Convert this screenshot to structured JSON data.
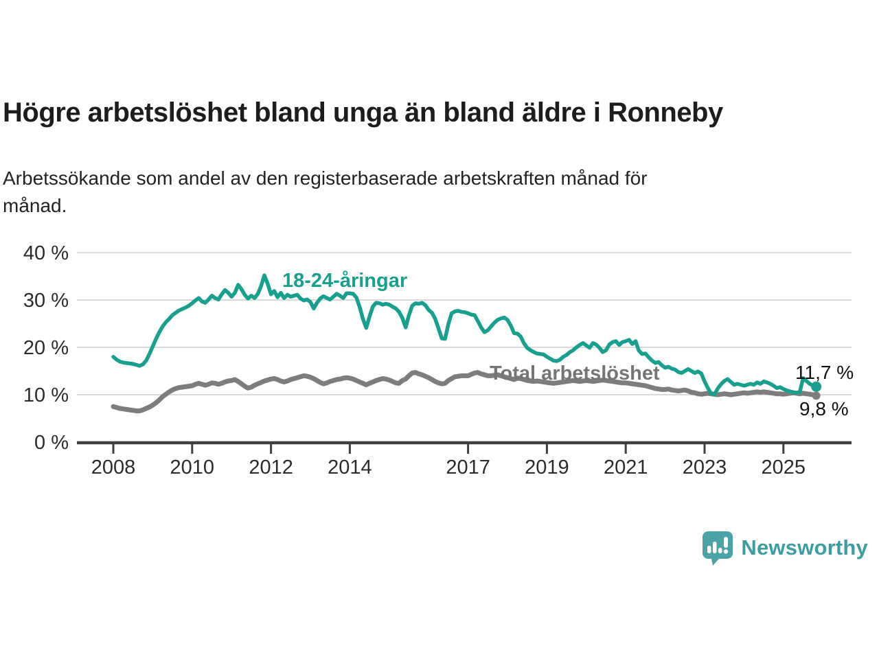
{
  "header": {
    "title": "Högre arbetslöshet bland unga än bland äldre i Ronneby",
    "subtitle_line1": "Arbetssökande som andel av den registerbaserade arbetskraften månad för",
    "subtitle_line2": "månad."
  },
  "chart_data": {
    "type": "line",
    "title": "Högre arbetslöshet bland unga än bland äldre i Ronneby",
    "subtitle": "Arbetssökande som andel av den registerbaserade arbetskraften månad för månad.",
    "x_start": 2008,
    "points_per_year": 12,
    "x_ticks": [
      2008,
      2010,
      2012,
      2014,
      2017,
      2019,
      2021,
      2023,
      2025
    ],
    "y_ticks": [
      0,
      10,
      20,
      30,
      40
    ],
    "y_tick_suffix": " %",
    "ylim": [
      0,
      40
    ],
    "grid": "horizontal",
    "legend_position": "inline-labels",
    "series": [
      {
        "id": "total",
        "label": "Total arbetslöshet",
        "color": "#7d7d7d",
        "width": 7,
        "dot_radius": 6,
        "end_value_label": "9,8 %",
        "end_value": 9.8,
        "values": [
          7.5,
          7.3,
          7.1,
          7.0,
          6.9,
          6.8,
          6.7,
          6.6,
          6.6,
          6.8,
          7.1,
          7.4,
          7.8,
          8.3,
          8.9,
          9.6,
          10.1,
          10.6,
          11.0,
          11.3,
          11.5,
          11.6,
          11.7,
          11.8,
          11.9,
          12.2,
          12.4,
          12.2,
          12.0,
          12.2,
          12.5,
          12.4,
          12.2,
          12.4,
          12.7,
          12.9,
          13.0,
          13.2,
          12.8,
          12.3,
          11.8,
          11.4,
          11.6,
          12.0,
          12.3,
          12.6,
          12.9,
          13.1,
          13.3,
          13.4,
          13.2,
          12.9,
          12.7,
          12.9,
          13.2,
          13.4,
          13.6,
          13.8,
          14.0,
          13.9,
          13.7,
          13.4,
          13.0,
          12.6,
          12.3,
          12.5,
          12.8,
          13.0,
          13.2,
          13.3,
          13.5,
          13.6,
          13.5,
          13.3,
          13.0,
          12.7,
          12.4,
          12.1,
          12.4,
          12.7,
          13.0,
          13.2,
          13.4,
          13.3,
          13.1,
          12.8,
          12.5,
          12.4,
          13.0,
          13.3,
          14.0,
          14.6,
          14.7,
          14.4,
          14.2,
          13.9,
          13.6,
          13.2,
          12.8,
          12.5,
          12.3,
          12.4,
          13.0,
          13.4,
          13.8,
          13.9,
          14.0,
          14.0,
          14.0,
          14.3,
          14.6,
          14.7,
          14.4,
          14.2,
          14.0,
          14.0,
          14.1,
          14.2,
          14.0,
          13.8,
          13.6,
          13.4,
          13.2,
          13.5,
          13.4,
          13.2,
          13.0,
          12.9,
          12.8,
          12.9,
          12.8,
          12.7,
          12.6,
          12.5,
          12.4,
          12.5,
          12.6,
          12.7,
          12.8,
          12.9,
          13.0,
          12.9,
          12.8,
          12.9,
          13.0,
          12.9,
          12.8,
          12.9,
          13.0,
          13.1,
          13.0,
          12.9,
          12.8,
          12.7,
          12.6,
          12.5,
          12.5,
          12.4,
          12.3,
          12.2,
          12.1,
          12.0,
          11.9,
          11.7,
          11.5,
          11.3,
          11.2,
          11.1,
          11.1,
          11.2,
          11.0,
          10.9,
          10.8,
          10.9,
          11.0,
          10.8,
          10.5,
          10.4,
          10.2,
          10.1,
          10.2,
          10.3,
          10.2,
          10.1,
          10.0,
          10.1,
          10.2,
          10.1,
          10.0,
          10.1,
          10.2,
          10.3,
          10.4,
          10.3,
          10.4,
          10.5,
          10.6,
          10.5,
          10.6,
          10.5,
          10.4,
          10.3,
          10.2,
          10.2,
          10.1,
          10.2,
          10.3,
          10.4,
          10.3,
          10.2,
          10.3,
          10.2,
          10.1,
          10.0,
          9.8
        ]
      },
      {
        "id": "young",
        "label": "18-24-åringar",
        "color": "#18a08f",
        "width": 5.5,
        "dot_radius": 7.5,
        "end_value_label": "11,7 %",
        "end_value": 11.7,
        "values": [
          18.0,
          17.4,
          17.0,
          16.8,
          16.7,
          16.6,
          16.5,
          16.3,
          16.1,
          16.4,
          17.2,
          18.6,
          20.2,
          21.8,
          23.2,
          24.4,
          25.3,
          26.0,
          26.8,
          27.3,
          27.8,
          28.1,
          28.4,
          28.8,
          29.3,
          29.9,
          30.4,
          29.7,
          29.4,
          30.1,
          30.9,
          30.4,
          30.1,
          31.2,
          32.1,
          31.5,
          30.7,
          31.5,
          33.2,
          32.3,
          31.1,
          30.3,
          30.9,
          30.4,
          31.3,
          33.0,
          35.2,
          33.4,
          31.2,
          31.9,
          30.6,
          31.5,
          30.4,
          31.1,
          30.7,
          30.9,
          31.1,
          30.3,
          29.9,
          30.1,
          29.6,
          28.2,
          29.4,
          30.3,
          30.8,
          30.4,
          30.1,
          30.7,
          31.3,
          30.9,
          30.4,
          31.4,
          31.4,
          31.3,
          30.5,
          28.5,
          26.0,
          24.1,
          26.5,
          28.6,
          29.4,
          29.3,
          29.0,
          29.2,
          29.0,
          28.6,
          28.2,
          27.5,
          26.2,
          24.2,
          26.8,
          28.8,
          29.3,
          29.2,
          29.4,
          28.9,
          27.9,
          27.3,
          26.0,
          24.0,
          21.9,
          21.8,
          24.9,
          27.2,
          27.6,
          27.7,
          27.5,
          27.4,
          27.2,
          26.9,
          26.8,
          25.5,
          24.2,
          23.2,
          23.6,
          24.4,
          25.2,
          25.8,
          26.1,
          26.3,
          25.8,
          24.6,
          23.0,
          22.9,
          22.3,
          20.9,
          19.9,
          19.4,
          19.0,
          18.7,
          18.6,
          18.5,
          18.0,
          17.6,
          17.2,
          17.1,
          17.4,
          18.0,
          18.4,
          19.0,
          19.4,
          20.0,
          20.5,
          20.9,
          20.4,
          19.9,
          20.9,
          20.6,
          19.9,
          19.0,
          19.4,
          20.6,
          21.1,
          21.3,
          20.5,
          21.1,
          21.3,
          21.6,
          20.7,
          21.3,
          19.3,
          18.6,
          18.7,
          17.9,
          17.2,
          16.7,
          16.9,
          16.2,
          15.7,
          15.9,
          15.5,
          15.3,
          14.8,
          14.6,
          15.0,
          15.4,
          15.0,
          14.6,
          14.9,
          14.5,
          12.8,
          11.4,
          10.2,
          10.0,
          11.3,
          12.2,
          12.9,
          13.3,
          12.7,
          12.1,
          12.3,
          12.1,
          11.9,
          12.1,
          12.3,
          12.1,
          12.6,
          12.3,
          12.8,
          12.6,
          12.3,
          11.9,
          11.4,
          11.6,
          11.2,
          10.9,
          10.7,
          10.5,
          10.4,
          10.6,
          13.5,
          12.9,
          12.3,
          11.9,
          11.7
        ]
      }
    ],
    "annotations": [
      {
        "text": "11,7 %",
        "series": "18-24-åringar"
      },
      {
        "text": "9,8 %",
        "series": "Total arbetslöshet"
      }
    ],
    "colors": {
      "grid": "#d9d9d9",
      "axis": "#3f3f3f",
      "axis_text": "#2b2b2b",
      "accent_teal": "#18a08f",
      "series_gray": "#7d7d7d"
    }
  },
  "logo": {
    "brand": "Newsworthy",
    "icon": "newsworthy-speech-bubble-barchart-icon",
    "icon_color": "#4aa3a6",
    "text_color": "#3d9ea1"
  }
}
